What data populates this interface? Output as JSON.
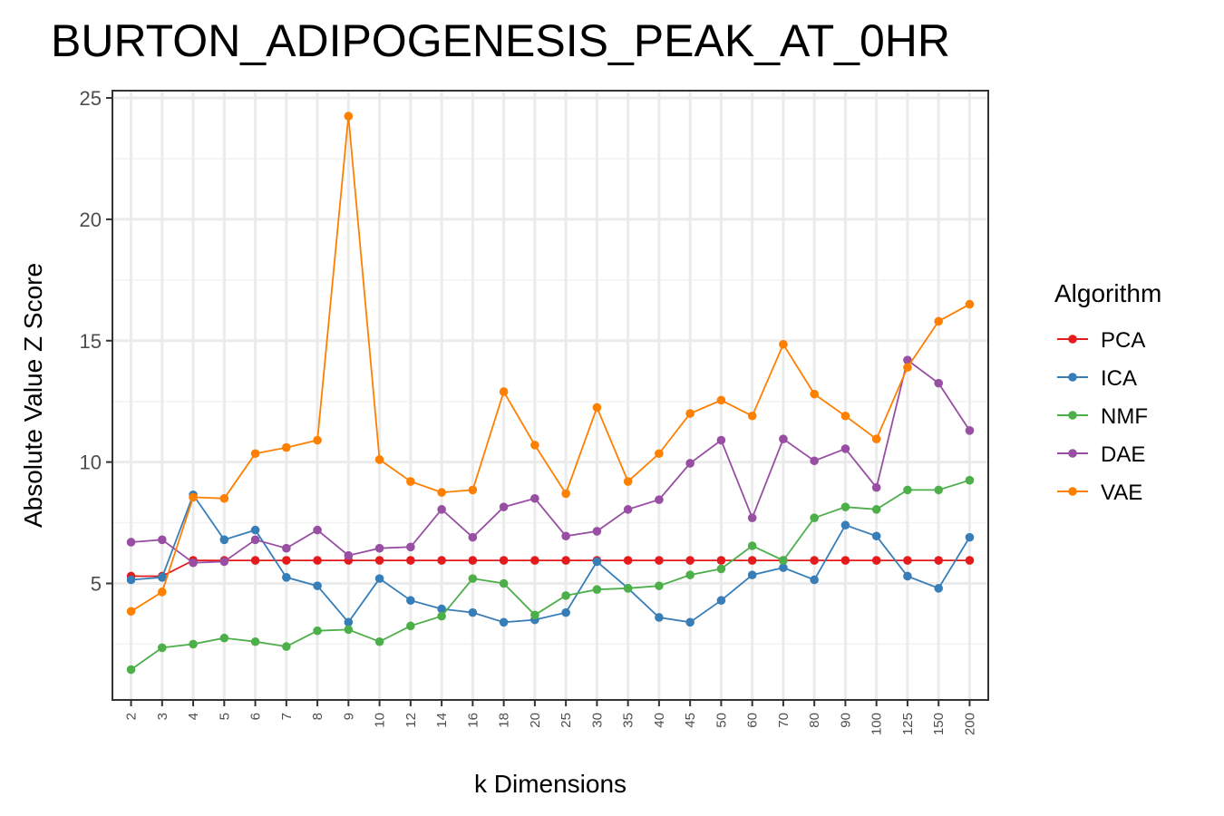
{
  "chart_data": {
    "type": "line",
    "title": "BURTON_ADIPOGENESIS_PEAK_AT_0HR",
    "xlabel": "k Dimensions",
    "ylabel": "Absolute Value Z Score",
    "categories": [
      "2",
      "3",
      "4",
      "5",
      "6",
      "7",
      "8",
      "9",
      "10",
      "12",
      "14",
      "16",
      "18",
      "20",
      "25",
      "30",
      "35",
      "40",
      "45",
      "50",
      "60",
      "70",
      "80",
      "90",
      "100",
      "125",
      "150",
      "200"
    ],
    "ylim": [
      0,
      25
    ],
    "yticks": [
      5,
      10,
      15,
      20,
      25
    ],
    "grid": true,
    "legend_title": "Algorithm",
    "legend_position": "right",
    "series": [
      {
        "name": "PCA",
        "color": "#e41a1c",
        "values": [
          5.3,
          5.3,
          5.95,
          5.95,
          5.95,
          5.95,
          5.95,
          5.95,
          5.95,
          5.95,
          5.95,
          5.95,
          5.95,
          5.95,
          5.95,
          5.95,
          5.95,
          5.95,
          5.95,
          5.95,
          5.95,
          5.95,
          5.95,
          5.95,
          5.95,
          5.95,
          5.95,
          5.95
        ]
      },
      {
        "name": "ICA",
        "color": "#377eb8",
        "values": [
          5.15,
          5.25,
          8.65,
          6.8,
          7.2,
          5.25,
          4.9,
          3.4,
          5.2,
          4.3,
          3.95,
          3.8,
          3.4,
          3.5,
          3.8,
          5.9,
          4.8,
          3.6,
          3.4,
          4.3,
          5.35,
          5.65,
          5.15,
          7.4,
          6.95,
          5.3,
          4.8,
          6.9
        ]
      },
      {
        "name": "NMF",
        "color": "#4daf4a",
        "values": [
          1.45,
          2.35,
          2.5,
          2.75,
          2.6,
          2.4,
          3.05,
          3.1,
          2.6,
          3.25,
          3.65,
          5.2,
          5.0,
          3.7,
          4.5,
          4.75,
          4.8,
          4.9,
          5.35,
          5.6,
          6.55,
          5.95,
          7.7,
          8.15,
          8.05,
          8.85,
          8.85,
          9.25
        ]
      },
      {
        "name": "DAE",
        "color": "#984ea3",
        "values": [
          6.7,
          6.8,
          5.85,
          5.9,
          6.8,
          6.45,
          7.2,
          6.15,
          6.45,
          6.5,
          8.05,
          6.9,
          8.15,
          8.5,
          6.95,
          7.15,
          8.05,
          8.45,
          9.95,
          10.9,
          7.7,
          10.95,
          10.05,
          10.55,
          8.95,
          14.2,
          13.25,
          11.3
        ]
      },
      {
        "name": "VAE",
        "color": "#ff7f00",
        "values": [
          3.85,
          4.65,
          8.55,
          8.5,
          10.35,
          10.6,
          10.9,
          24.25,
          10.1,
          9.2,
          8.75,
          8.85,
          12.9,
          10.7,
          8.7,
          12.25,
          9.2,
          10.35,
          12.0,
          12.55,
          11.9,
          14.85,
          12.8,
          11.9,
          10.95,
          13.9,
          15.8,
          16.5
        ]
      }
    ]
  }
}
